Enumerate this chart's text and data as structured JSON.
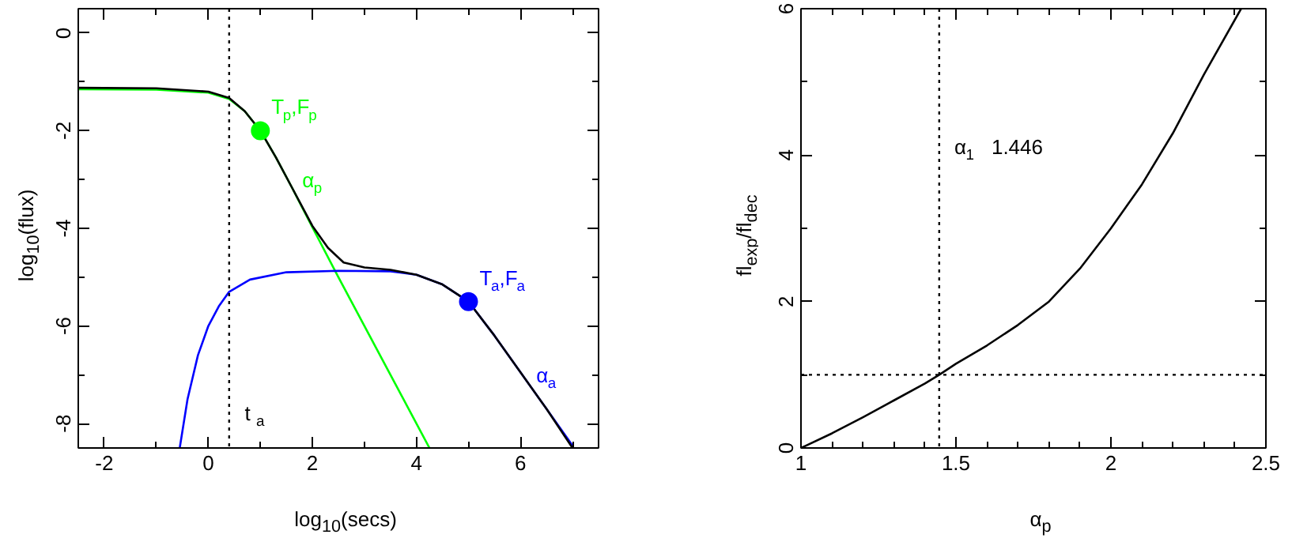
{
  "chart_data": [
    {
      "type": "line",
      "xlabel": "log$_{10}$(secs)",
      "ylabel": "log$_{10}$(flux)",
      "xlim": [
        -2.5,
        7.5
      ],
      "ylim": [
        -8.5,
        0.5
      ],
      "xticks": [
        -2,
        {
          "value": -1,
          "label": null
        },
        0,
        {
          "value": 1,
          "label": null
        },
        2,
        {
          "value": 3,
          "label": null
        },
        4,
        {
          "value": 5,
          "label": null
        },
        6,
        {
          "value": 7,
          "label": null
        }
      ],
      "yticks": [
        -8,
        {
          "value": -7,
          "label": null
        },
        -6,
        {
          "value": -5,
          "label": null
        },
        -4,
        {
          "value": -3,
          "label": null
        },
        -2,
        {
          "value": -1,
          "label": null
        },
        0
      ],
      "grid": false,
      "line_style": "solid",
      "series": [
        {
          "type": "line",
          "color": "#00ff00",
          "x": [
            -2.5,
            -1,
            0,
            0.4,
            0.7,
            1,
            1.3,
            1.6,
            2,
            2.5,
            3,
            3.5,
            4,
            4.25
          ],
          "values": [
            -1.15,
            -1.16,
            -1.22,
            -1.35,
            -1.6,
            -2.0,
            -2.55,
            -3.15,
            -3.98,
            -5.0,
            -6.0,
            -7.0,
            -8.0,
            -8.5
          ]
        },
        {
          "type": "line",
          "color": "#0000ff",
          "x": [
            -0.55,
            -0.4,
            -0.2,
            0,
            0.2,
            0.4,
            0.8,
            1.5,
            2.5,
            3.5,
            4,
            4.5,
            5,
            5.5,
            6,
            6.5,
            7
          ],
          "values": [
            -8.5,
            -7.5,
            -6.6,
            -6.0,
            -5.6,
            -5.3,
            -5.05,
            -4.9,
            -4.87,
            -4.88,
            -4.95,
            -5.15,
            -5.5,
            -6.2,
            -6.95,
            -7.7,
            -8.45
          ]
        },
        {
          "type": "line",
          "color": "#000000",
          "x": [
            -2.5,
            -1,
            0,
            0.4,
            0.7,
            1,
            1.3,
            1.6,
            2,
            2.3,
            2.6,
            3,
            3.5,
            4,
            4.5,
            5,
            5.5,
            6,
            6.5,
            7
          ],
          "values": [
            -1.12,
            -1.13,
            -1.2,
            -1.33,
            -1.6,
            -2.0,
            -2.55,
            -3.15,
            -3.95,
            -4.4,
            -4.7,
            -4.8,
            -4.85,
            -4.95,
            -5.15,
            -5.5,
            -6.2,
            -6.95,
            -7.7,
            -8.5
          ]
        },
        {
          "type": "scatter",
          "marker": "circle",
          "color": "#00ff00",
          "x": [
            1
          ],
          "values": [
            -2
          ]
        },
        {
          "type": "scatter",
          "marker": "circle",
          "color": "#0000ff",
          "x": [
            5
          ],
          "values": [
            -5.5
          ]
        }
      ],
      "ref_lines": [
        {
          "axis": "x",
          "value": 0.4,
          "label": "t$_{a}$",
          "line_style": "dotted",
          "color": "#000000"
        }
      ],
      "annotations": [
        {
          "text": "T$_{p}$,F$_{p}$",
          "x": 1,
          "y": -2
        },
        {
          "text": "α$_{p}$",
          "x": 1.5,
          "y": -2.95
        },
        {
          "text": "T$_{a}$,F$_{a}$",
          "x": 5,
          "y": -5.5
        },
        {
          "text": "α$_{a}$",
          "x": 6,
          "y": -6.95
        }
      ]
    },
    {
      "type": "line",
      "xlabel": "α$_{p}$",
      "ylabel": "fl$_{exp}$/fl$_{dec}$",
      "xlim": [
        1,
        2.5
      ],
      "ylim": [
        0,
        6
      ],
      "xticks": [
        1,
        {
          "value": 1.1,
          "label": null
        },
        {
          "value": 1.2,
          "label": null
        },
        {
          "value": 1.3,
          "label": null
        },
        {
          "value": 1.4,
          "label": null
        },
        1.5,
        {
          "value": 1.6,
          "label": null
        },
        {
          "value": 1.7,
          "label": null
        },
        {
          "value": 1.8,
          "label": null
        },
        {
          "value": 1.9,
          "label": null
        },
        2,
        {
          "value": 2.1,
          "label": null
        },
        {
          "value": 2.2,
          "label": null
        },
        {
          "value": 2.3,
          "label": null
        },
        {
          "value": 2.4,
          "label": null
        },
        2.5
      ],
      "yticks": [
        0,
        {
          "value": 1,
          "label": null
        },
        2,
        {
          "value": 3,
          "label": null
        },
        4,
        {
          "value": 5,
          "label": null
        },
        6
      ],
      "grid": false,
      "line_style": "solid",
      "series": [
        {
          "type": "line",
          "color": "#000000",
          "x": [
            1,
            1.1,
            1.2,
            1.3,
            1.4,
            1.446,
            1.5,
            1.6,
            1.7,
            1.8,
            1.9,
            2.0,
            2.1,
            2.2,
            2.3,
            2.42
          ],
          "values": [
            0,
            0.2,
            0.42,
            0.65,
            0.88,
            1.0,
            1.15,
            1.4,
            1.68,
            2.0,
            2.45,
            3.0,
            3.6,
            4.3,
            5.1,
            6.0
          ]
        }
      ],
      "ref_lines": [
        {
          "axis": "x",
          "value": 1.446,
          "line_style": "dotted",
          "color": "#000000"
        },
        {
          "axis": "y",
          "value": 1,
          "line_style": "dotted",
          "color": "#000000"
        }
      ],
      "annotations": [
        "α$_{1}$   1.446"
      ]
    }
  ]
}
